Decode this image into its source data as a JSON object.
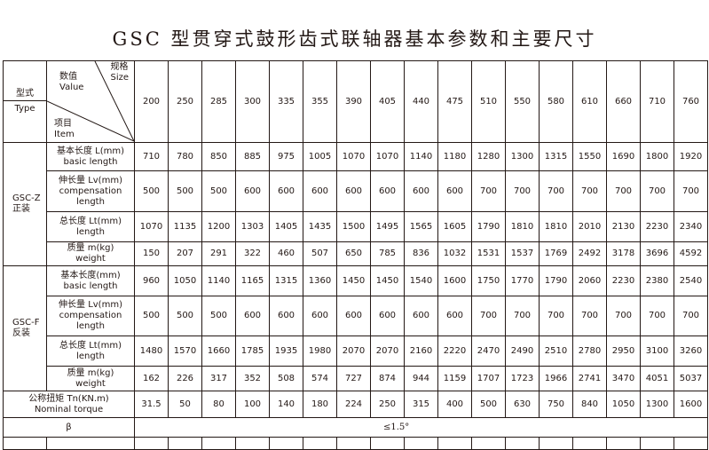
{
  "title": "GSC 型贯穿式鼓形齿式联轴器基本参数和主要尺寸",
  "header": {
    "type_cn": "型式",
    "type_en": "Type",
    "value_cn": "数值",
    "value_en": "Value",
    "size_cn": "规格",
    "size_en": "Size",
    "item_cn": "项目",
    "item_en": "Item"
  },
  "sizes": [
    "200",
    "250",
    "285",
    "300",
    "335",
    "355",
    "390",
    "405",
    "440",
    "475",
    "510",
    "550",
    "580",
    "610",
    "660",
    "710",
    "760"
  ],
  "groups": [
    {
      "name_en": "GSC-Z",
      "name_cn": "正装",
      "rows": [
        {
          "label_cn": "基本长度 L(mm)",
          "label_en": "basic length",
          "values": [
            "710",
            "780",
            "850",
            "885",
            "975",
            "1005",
            "1070",
            "1070",
            "1140",
            "1180",
            "1280",
            "1300",
            "1315",
            "1550",
            "1690",
            "1800",
            "1920"
          ]
        },
        {
          "label_cn": "伸长量 Lv(mm)",
          "label_en": "compensation",
          "label_en2": "length",
          "values": [
            "500",
            "500",
            "500",
            "600",
            "600",
            "600",
            "600",
            "600",
            "600",
            "600",
            "700",
            "700",
            "700",
            "700",
            "700",
            "700",
            "700"
          ]
        },
        {
          "label_cn": "总长度 Lt(mm)",
          "label_en": "length",
          "values": [
            "1070",
            "1135",
            "1200",
            "1303",
            "1405",
            "1435",
            "1500",
            "1495",
            "1565",
            "1605",
            "1790",
            "1810",
            "1810",
            "2010",
            "2130",
            "2230",
            "2340"
          ]
        },
        {
          "label_cn": "质量 m(kg)",
          "label_en": "weight",
          "values": [
            "150",
            "207",
            "291",
            "322",
            "460",
            "507",
            "650",
            "785",
            "836",
            "1032",
            "1531",
            "1537",
            "1769",
            "2492",
            "3178",
            "3696",
            "4592"
          ]
        }
      ]
    },
    {
      "name_en": "GSC-F",
      "name_cn": "反装",
      "rows": [
        {
          "label_cn": "基本长度(mm)",
          "label_en": "basic length",
          "values": [
            "960",
            "1050",
            "1140",
            "1165",
            "1315",
            "1360",
            "1450",
            "1450",
            "1540",
            "1600",
            "1750",
            "1770",
            "1790",
            "2060",
            "2230",
            "2380",
            "2540"
          ]
        },
        {
          "label_cn": "伸长量 Lv(mm)",
          "label_en": "compensation",
          "label_en2": "length",
          "values": [
            "500",
            "500",
            "500",
            "600",
            "600",
            "600",
            "600",
            "600",
            "600",
            "600",
            "700",
            "700",
            "700",
            "700",
            "700",
            "700",
            "700"
          ]
        },
        {
          "label_cn": "总长度 Lt(mm)",
          "label_en": "length",
          "values": [
            "1480",
            "1570",
            "1660",
            "1785",
            "1935",
            "1980",
            "2070",
            "2070",
            "2160",
            "2220",
            "2470",
            "2490",
            "2510",
            "2780",
            "2950",
            "3100",
            "3260"
          ]
        },
        {
          "label_cn": "质量 m(kg)",
          "label_en": "weight",
          "values": [
            "162",
            "226",
            "317",
            "352",
            "508",
            "574",
            "727",
            "874",
            "944",
            "1159",
            "1707",
            "1723",
            "1966",
            "2741",
            "3470",
            "4051",
            "5037"
          ]
        }
      ]
    }
  ],
  "torque": {
    "label_cn": "公称扭矩 Tn(KN.m)",
    "label_en": "Nominal torque",
    "values": [
      "31.5",
      "50",
      "80",
      "100",
      "140",
      "180",
      "224",
      "250",
      "315",
      "400",
      "500",
      "630",
      "750",
      "840",
      "1050",
      "1300",
      "1600"
    ]
  },
  "beta": {
    "label": "β",
    "value": "≤1.5°"
  }
}
